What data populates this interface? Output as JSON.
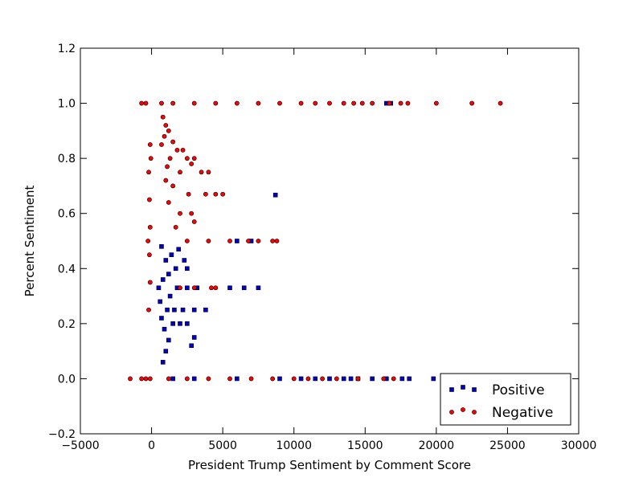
{
  "chart_data": {
    "type": "scatter",
    "xlabel": "President Trump Sentiment by Comment Score",
    "ylabel": "Percent Sentiment",
    "xlim": [
      -5000,
      30000
    ],
    "ylim": [
      -0.2,
      1.2
    ],
    "x_ticks": [
      -5000,
      0,
      5000,
      10000,
      15000,
      20000,
      25000,
      30000
    ],
    "x_tick_labels": [
      "−5000",
      "0",
      "5000",
      "10000",
      "15000",
      "20000",
      "25000",
      "30000"
    ],
    "y_ticks": [
      -0.2,
      0.0,
      0.2,
      0.4,
      0.6,
      0.8,
      1.0,
      1.2
    ],
    "y_tick_labels": [
      "−0.2",
      "0.0",
      "0.2",
      "0.4",
      "0.6",
      "0.8",
      "1.0",
      "1.2"
    ],
    "legend_position": "lower-right",
    "grid": false,
    "series": [
      {
        "name": "Positive",
        "marker": "square",
        "color": "#0000cc",
        "points": [
          [
            800,
            0.06
          ],
          [
            1000,
            0.1
          ],
          [
            1200,
            0.14
          ],
          [
            900,
            0.18
          ],
          [
            1500,
            0.2
          ],
          [
            2000,
            0.2
          ],
          [
            2500,
            0.2
          ],
          [
            700,
            0.22
          ],
          [
            1100,
            0.25
          ],
          [
            1600,
            0.25
          ],
          [
            2200,
            0.25
          ],
          [
            3000,
            0.25
          ],
          [
            3800,
            0.25
          ],
          [
            600,
            0.28
          ],
          [
            1300,
            0.3
          ],
          [
            1800,
            0.33
          ],
          [
            2500,
            0.33
          ],
          [
            3200,
            0.33
          ],
          [
            800,
            0.36
          ],
          [
            1200,
            0.38
          ],
          [
            1700,
            0.4
          ],
          [
            2500,
            0.4
          ],
          [
            1000,
            0.43
          ],
          [
            1400,
            0.45
          ],
          [
            2300,
            0.43
          ],
          [
            700,
            0.48
          ],
          [
            1900,
            0.47
          ],
          [
            3000,
            0.15
          ],
          [
            2800,
            0.12
          ],
          [
            500,
            0.33
          ],
          [
            5500,
            0.33
          ],
          [
            6500,
            0.33
          ],
          [
            7500,
            0.33
          ],
          [
            6000,
            0.5
          ],
          [
            7000,
            0.5
          ],
          [
            8700,
            0.667
          ],
          [
            1500,
            0.0
          ],
          [
            3000,
            0.0
          ],
          [
            6000,
            0.0
          ],
          [
            9000,
            0.0
          ],
          [
            10500,
            0.0
          ],
          [
            11500,
            0.0
          ],
          [
            12500,
            0.0
          ],
          [
            13500,
            0.0
          ],
          [
            14000,
            0.0
          ],
          [
            14500,
            0.0
          ],
          [
            15500,
            0.0
          ],
          [
            16500,
            0.0
          ],
          [
            17600,
            0.0
          ],
          [
            18100,
            0.0
          ],
          [
            19800,
            0.0
          ],
          [
            21000,
            0.0
          ],
          [
            22700,
            0.0
          ],
          [
            16500,
            1.0
          ],
          [
            16800,
            1.0
          ]
        ]
      },
      {
        "name": "Negative",
        "marker": "circle",
        "color": "#ff0000",
        "points": [
          [
            -1500,
            0.0
          ],
          [
            -700,
            0.0
          ],
          [
            -400,
            0.0
          ],
          [
            -100,
            0.0
          ],
          [
            1200,
            0.0
          ],
          [
            2500,
            0.0
          ],
          [
            4000,
            0.0
          ],
          [
            5500,
            0.0
          ],
          [
            7000,
            0.0
          ],
          [
            8500,
            0.0
          ],
          [
            10000,
            0.0
          ],
          [
            11000,
            0.0
          ],
          [
            12000,
            0.0
          ],
          [
            13000,
            0.0
          ],
          [
            14500,
            0.0
          ],
          [
            16300,
            0.0
          ],
          [
            17000,
            0.0
          ],
          [
            -700,
            1.0
          ],
          [
            -400,
            1.0
          ],
          [
            700,
            1.0
          ],
          [
            1500,
            1.0
          ],
          [
            3000,
            1.0
          ],
          [
            4500,
            1.0
          ],
          [
            6000,
            1.0
          ],
          [
            7500,
            1.0
          ],
          [
            9000,
            1.0
          ],
          [
            10500,
            1.0
          ],
          [
            11500,
            1.0
          ],
          [
            12500,
            1.0
          ],
          [
            13500,
            1.0
          ],
          [
            14200,
            1.0
          ],
          [
            14800,
            1.0
          ],
          [
            15500,
            1.0
          ],
          [
            16700,
            1.0
          ],
          [
            17500,
            1.0
          ],
          [
            18000,
            1.0
          ],
          [
            20000,
            1.0
          ],
          [
            22500,
            1.0
          ],
          [
            24500,
            1.0
          ],
          [
            800,
            0.95
          ],
          [
            1000,
            0.92
          ],
          [
            1200,
            0.9
          ],
          [
            900,
            0.88
          ],
          [
            1500,
            0.86
          ],
          [
            700,
            0.85
          ],
          [
            1800,
            0.83
          ],
          [
            2200,
            0.83
          ],
          [
            2500,
            0.8
          ],
          [
            1300,
            0.8
          ],
          [
            3000,
            0.8
          ],
          [
            2800,
            0.78
          ],
          [
            1100,
            0.77
          ],
          [
            3500,
            0.75
          ],
          [
            2000,
            0.75
          ],
          [
            4000,
            0.75
          ],
          [
            1000,
            0.72
          ],
          [
            1500,
            0.7
          ],
          [
            3800,
            0.67
          ],
          [
            4500,
            0.67
          ],
          [
            5000,
            0.67
          ],
          [
            2600,
            0.67
          ],
          [
            1200,
            0.64
          ],
          [
            2000,
            0.6
          ],
          [
            2800,
            0.6
          ],
          [
            3000,
            0.57
          ],
          [
            1700,
            0.55
          ],
          [
            2500,
            0.5
          ],
          [
            4000,
            0.5
          ],
          [
            5500,
            0.5
          ],
          [
            6800,
            0.5
          ],
          [
            7500,
            0.5
          ],
          [
            8500,
            0.5
          ],
          [
            8800,
            0.5
          ],
          [
            2000,
            0.33
          ],
          [
            3000,
            0.33
          ],
          [
            4200,
            0.33
          ],
          [
            4500,
            0.33
          ],
          [
            -200,
            0.75
          ],
          [
            -150,
            0.65
          ],
          [
            -100,
            0.55
          ],
          [
            -150,
            0.45
          ],
          [
            -100,
            0.35
          ],
          [
            -250,
            0.5
          ],
          [
            -200,
            0.25
          ],
          [
            -100,
            0.85
          ],
          [
            -50,
            0.8
          ]
        ]
      }
    ]
  }
}
